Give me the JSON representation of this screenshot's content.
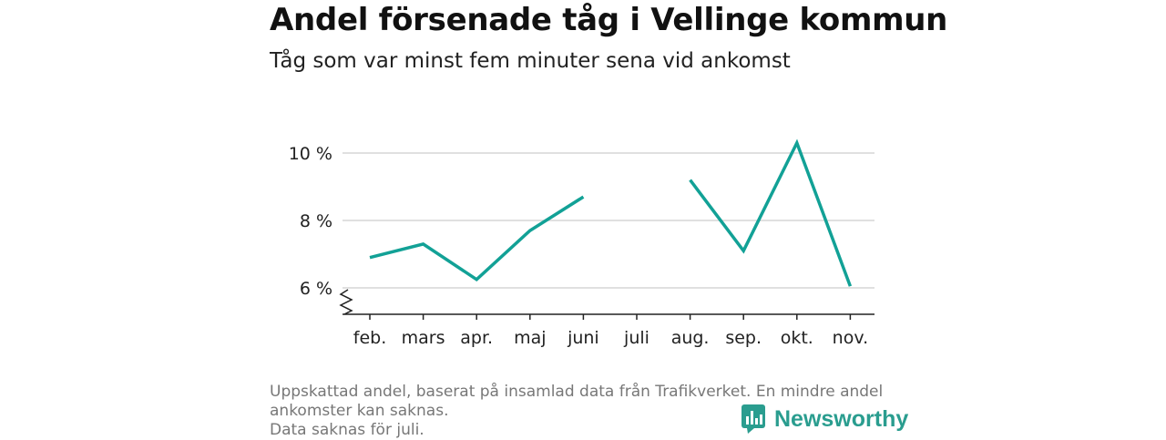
{
  "title": "Andel försenade tåg i Vellinge kommun",
  "subtitle": "Tåg som var minst fem minuter sena vid ankomst",
  "footnote": {
    "line1": "Uppskattad andel, baserat på insamlad data från Trafikverket. En mindre andel ankomster kan saknas.",
    "line2": "Data saknas för juli."
  },
  "brand": {
    "name": "Newsworthy",
    "icon": "newsworthy-logo-icon",
    "color": "#2a9d8f"
  },
  "chart_data": {
    "type": "line",
    "categories": [
      "feb.",
      "mars",
      "apr.",
      "maj",
      "juni",
      "juli",
      "aug.",
      "sep.",
      "okt.",
      "nov."
    ],
    "series": [
      {
        "values": [
          6.9,
          7.3,
          6.25,
          7.7,
          8.7,
          null,
          9.2,
          7.1,
          10.3,
          6.05
        ]
      }
    ],
    "yticks": [
      6,
      8,
      10
    ],
    "ytick_labels": [
      "6 %",
      "8 %",
      "10 %"
    ],
    "ylim": [
      5.2,
      10.6
    ],
    "axis_break": true,
    "grid": true,
    "line_color": "#12a196"
  }
}
